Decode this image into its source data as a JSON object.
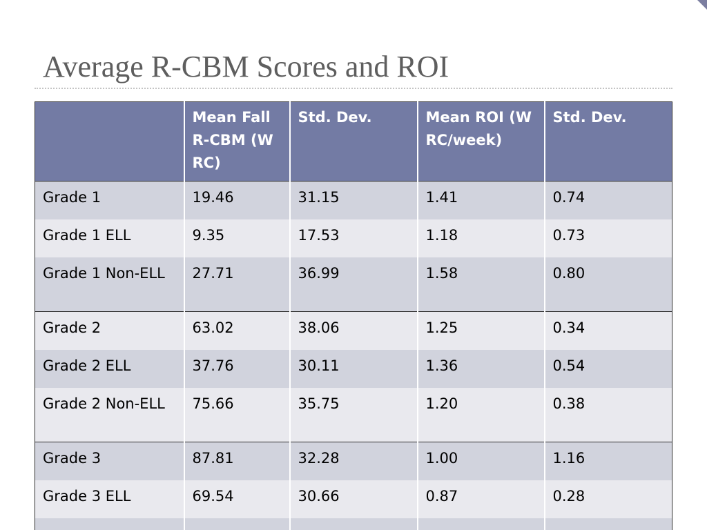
{
  "slide": {
    "title": "Average R-CBM Scores and ROI"
  },
  "table": {
    "headers": [
      "",
      "Mean Fall R-CBM (WRC)",
      "Std. Dev.",
      "Mean ROI (WRC/week)",
      "Std. Dev."
    ],
    "rows": [
      [
        "Grade 1",
        "19.46",
        "31.15",
        "1.41",
        "0.74"
      ],
      [
        "Grade 1 ELL",
        "9.35",
        "17.53",
        "1.18",
        "0.73"
      ],
      [
        "Grade 1 Non-ELL",
        "27.71",
        "36.99",
        "1.58",
        "0.80"
      ],
      [
        "Grade 2",
        "63.02",
        "38.06",
        "1.25",
        "0.34"
      ],
      [
        "Grade 2 ELL",
        "37.76",
        "30.11",
        "1.36",
        "0.54"
      ],
      [
        "Grade 2 Non-ELL",
        "75.66",
        "35.75",
        "1.20",
        "0.38"
      ],
      [
        "Grade 3",
        "87.81",
        "32.28",
        "1.00",
        "1.16"
      ],
      [
        "Grade 3 ELL",
        "69.54",
        "30.66",
        "0.87",
        "0.28"
      ],
      [
        "",
        "",
        "",
        "",
        ""
      ]
    ]
  },
  "colors": {
    "header_fill": "#737ba4",
    "row_dark": "#d1d3dd",
    "row_light": "#e9e9ee",
    "title_text": "#5e5e5e",
    "accent": "#7b7ea0"
  }
}
